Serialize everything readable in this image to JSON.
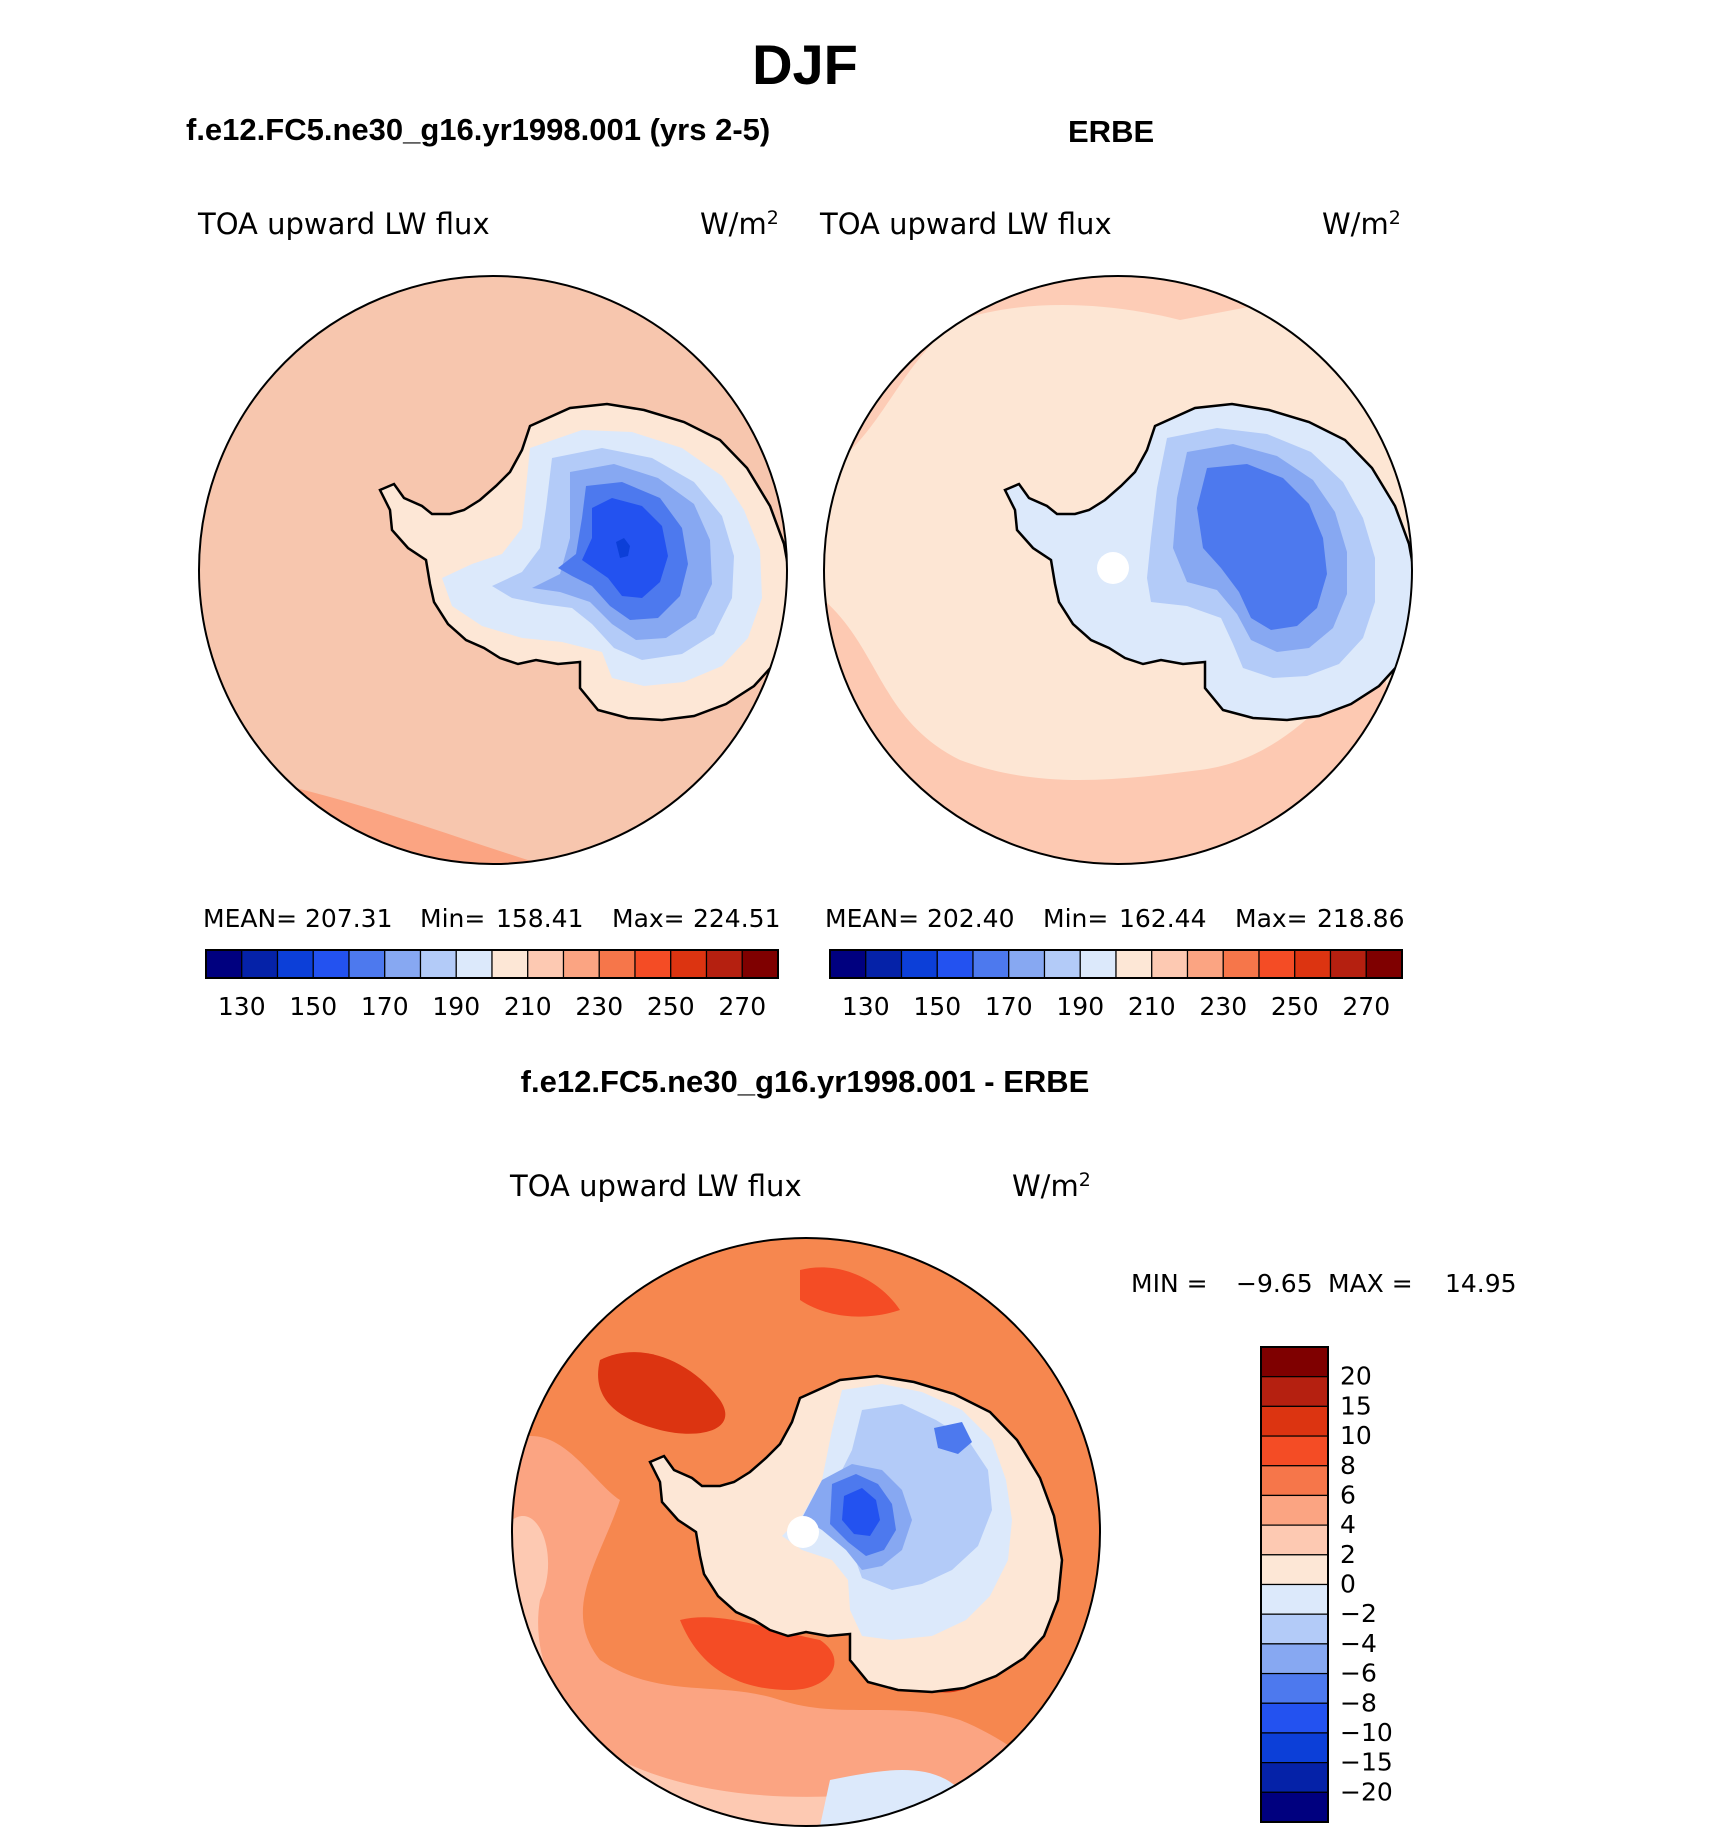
{
  "figure": {
    "title": "DJF",
    "case_title": "f.e12.FC5.ne30_g16.yr1998.001 (yrs 2-5)",
    "obs_title": "ERBE",
    "diff_title": "f.e12.FC5.ne30_g16.yr1998.001 - ERBE"
  },
  "chart_data": [
    {
      "type": "heatmap",
      "name": "model",
      "projection": "south-polar-stereographic",
      "variable": "TOA upward LW flux",
      "units": "W/m2",
      "units_base": "W/m",
      "units_exp": "2",
      "stats": [
        {
          "label": "MEAN=",
          "value": "207.31"
        },
        {
          "label": "Min=",
          "value": "158.41"
        },
        {
          "label": "Max=",
          "value": "224.51"
        }
      ],
      "levels": [
        130,
        140,
        150,
        160,
        170,
        180,
        190,
        200,
        210,
        220,
        230,
        240,
        250,
        260,
        270
      ],
      "tick_labels": [
        "130",
        "150",
        "170",
        "190",
        "210",
        "230",
        "250",
        "270"
      ]
    },
    {
      "type": "heatmap",
      "name": "obs",
      "projection": "south-polar-stereographic",
      "variable": "TOA upward LW flux",
      "units": "W/m2",
      "units_base": "W/m",
      "units_exp": "2",
      "stats": [
        {
          "label": "MEAN=",
          "value": "202.40"
        },
        {
          "label": "Min=",
          "value": "162.44"
        },
        {
          "label": "Max=",
          "value": "218.86"
        }
      ],
      "levels": [
        130,
        140,
        150,
        160,
        170,
        180,
        190,
        200,
        210,
        220,
        230,
        240,
        250,
        260,
        270
      ],
      "tick_labels": [
        "130",
        "150",
        "170",
        "190",
        "210",
        "230",
        "250",
        "270"
      ]
    },
    {
      "type": "heatmap",
      "name": "difference",
      "projection": "south-polar-stereographic",
      "variable": "TOA upward LW flux",
      "units": "W/m2",
      "units_base": "W/m",
      "units_exp": "2",
      "min_label": "MIN =",
      "min_value": "−9.65",
      "max_label": "MAX =",
      "max_value": "14.95",
      "levels": [
        20,
        15,
        10,
        8,
        6,
        4,
        2,
        0,
        -2,
        -4,
        -6,
        -8,
        -10,
        -15,
        -20
      ],
      "tick_labels": [
        "20",
        "15",
        "10",
        "8",
        "6",
        "4",
        "2",
        "0",
        "−2",
        "−4",
        "−6",
        "−8",
        "−10",
        "−15",
        "−20"
      ]
    }
  ],
  "colors": {
    "colorbar": [
      "#00007f",
      "#0522a8",
      "#0c3fd8",
      "#2352f0",
      "#4d79ee",
      "#87a8f2",
      "#b3cbf8",
      "#dce9fb",
      "#fde7d6",
      "#fdc9b2",
      "#fba482",
      "#f6764a",
      "#f44c25",
      "#dc3411",
      "#b52010",
      "#7f0000"
    ],
    "ocean_model": "#f7c6ae",
    "ocean_obs": "#fde6d4",
    "diff_background": "#f6874f",
    "white": "#ffffff",
    "line": "#000000"
  }
}
